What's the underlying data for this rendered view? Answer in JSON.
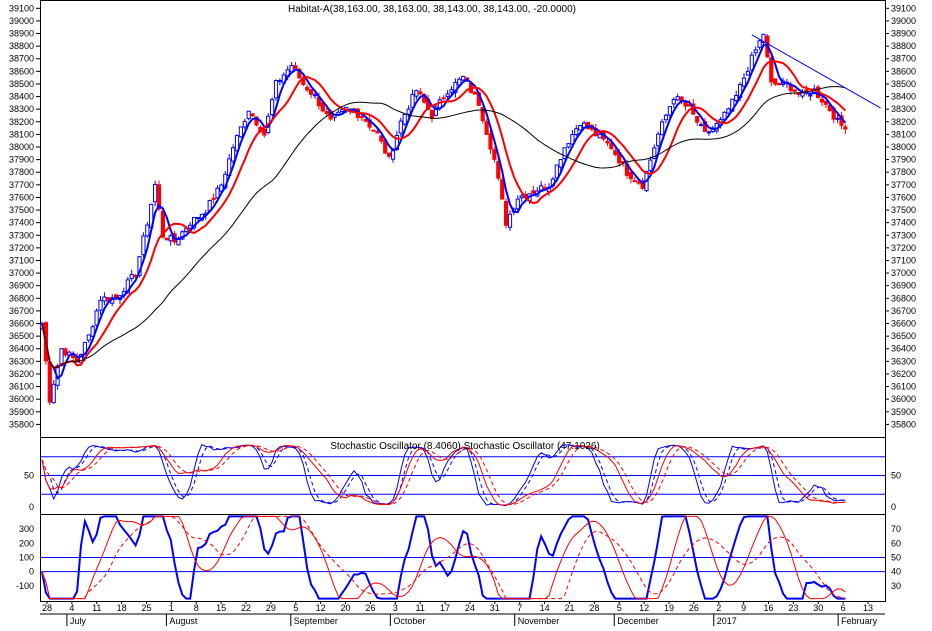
{
  "chart_data": [
    {
      "type": "candlestick",
      "title": "Habitat-A(38,163.00, 38,163.00, 38,143.00, 38,143.00, -20.0000)",
      "ylim": [
        35700,
        39150
      ],
      "y_ticks": [
        35800,
        35900,
        36000,
        36100,
        36200,
        36300,
        36400,
        36500,
        36600,
        36700,
        36800,
        36900,
        37000,
        37100,
        37200,
        37300,
        37400,
        37500,
        37600,
        37700,
        37800,
        37900,
        38000,
        38100,
        38200,
        38300,
        38400,
        38500,
        38600,
        38700,
        38800,
        38900,
        39000,
        39100
      ],
      "x_tick_labels": [
        "28",
        "4",
        "11",
        "18",
        "25",
        "1",
        "8",
        "15",
        "22",
        "29",
        "5",
        "12",
        "20",
        "26",
        "3",
        "11",
        "17",
        "24",
        "31",
        "7",
        "14",
        "21",
        "28",
        "5",
        "12",
        "19",
        "26",
        "2",
        "9",
        "16",
        "23",
        "30",
        "6",
        "13"
      ],
      "month_labels": [
        "July",
        "August",
        "September",
        "October",
        "November",
        "December",
        "2017",
        "February"
      ],
      "close_anchors": [
        [
          0,
          36600
        ],
        [
          2,
          36000
        ],
        [
          5,
          36400
        ],
        [
          9,
          36300
        ],
        [
          12,
          36500
        ],
        [
          15,
          36800
        ],
        [
          19,
          36800
        ],
        [
          24,
          37000
        ],
        [
          27,
          37400
        ],
        [
          29,
          37700
        ],
        [
          31,
          37300
        ],
        [
          34,
          37250
        ],
        [
          38,
          37400
        ],
        [
          42,
          37500
        ],
        [
          46,
          37700
        ],
        [
          49,
          38000
        ],
        [
          53,
          38300
        ],
        [
          57,
          38100
        ],
        [
          60,
          38500
        ],
        [
          64,
          38650
        ],
        [
          67,
          38500
        ],
        [
          70,
          38400
        ],
        [
          74,
          38200
        ],
        [
          78,
          38300
        ],
        [
          82,
          38250
        ],
        [
          86,
          38100
        ],
        [
          89,
          37900
        ],
        [
          92,
          38200
        ],
        [
          96,
          38450
        ],
        [
          100,
          38250
        ],
        [
          104,
          38450
        ],
        [
          108,
          38550
        ],
        [
          112,
          38350
        ],
        [
          116,
          37900
        ],
        [
          119,
          37400
        ],
        [
          122,
          37600
        ],
        [
          126,
          37650
        ],
        [
          130,
          37700
        ],
        [
          134,
          38000
        ],
        [
          138,
          38200
        ],
        [
          142,
          38100
        ],
        [
          146,
          38000
        ],
        [
          150,
          37800
        ],
        [
          154,
          37700
        ],
        [
          158,
          38100
        ],
        [
          162,
          38400
        ],
        [
          166,
          38300
        ],
        [
          170,
          38100
        ],
        [
          174,
          38200
        ],
        [
          178,
          38400
        ],
        [
          182,
          38700
        ],
        [
          185,
          38900
        ],
        [
          187,
          38500
        ],
        [
          191,
          38500
        ],
        [
          195,
          38400
        ],
        [
          198,
          38450
        ],
        [
          202,
          38300
        ],
        [
          204,
          38200
        ],
        [
          206,
          38143
        ]
      ],
      "series": [
        {
          "name": "",
          "color": "#0000ff",
          "period": 4
        },
        {
          "name": "",
          "color": "#ff0000",
          "period": 9
        },
        {
          "name": "",
          "color": "#000000",
          "period": 30
        }
      ],
      "trendline": {
        "x": [
          182,
          215
        ],
        "y": [
          38890,
          38310
        ],
        "color": "#0000ff"
      },
      "up_color": "#0000ff",
      "down_color": "#ff0000"
    },
    {
      "type": "line",
      "title": "Stochastic Oscillator (8.4060) Stochastic Oscillator (47.1026)",
      "ylim": [
        -10,
        110
      ],
      "y_ticks": [
        0,
        50
      ],
      "levels": [
        20,
        50,
        80
      ],
      "level_color": "#0000ff",
      "series_colors": [
        "#0000ff",
        "#0000ff",
        "#ff0000",
        "#ff0000"
      ]
    },
    {
      "type": "line",
      "left_ylim": [
        -200,
        400
      ],
      "left_ticks": [
        -100,
        0,
        100,
        200,
        300
      ],
      "right_ticks": [
        30,
        40,
        50,
        60,
        70
      ],
      "levels": [
        0,
        100
      ],
      "level_color": "#0000ff",
      "series_colors": [
        "#0000ff",
        "#ff0000",
        "#ff0000"
      ]
    }
  ]
}
